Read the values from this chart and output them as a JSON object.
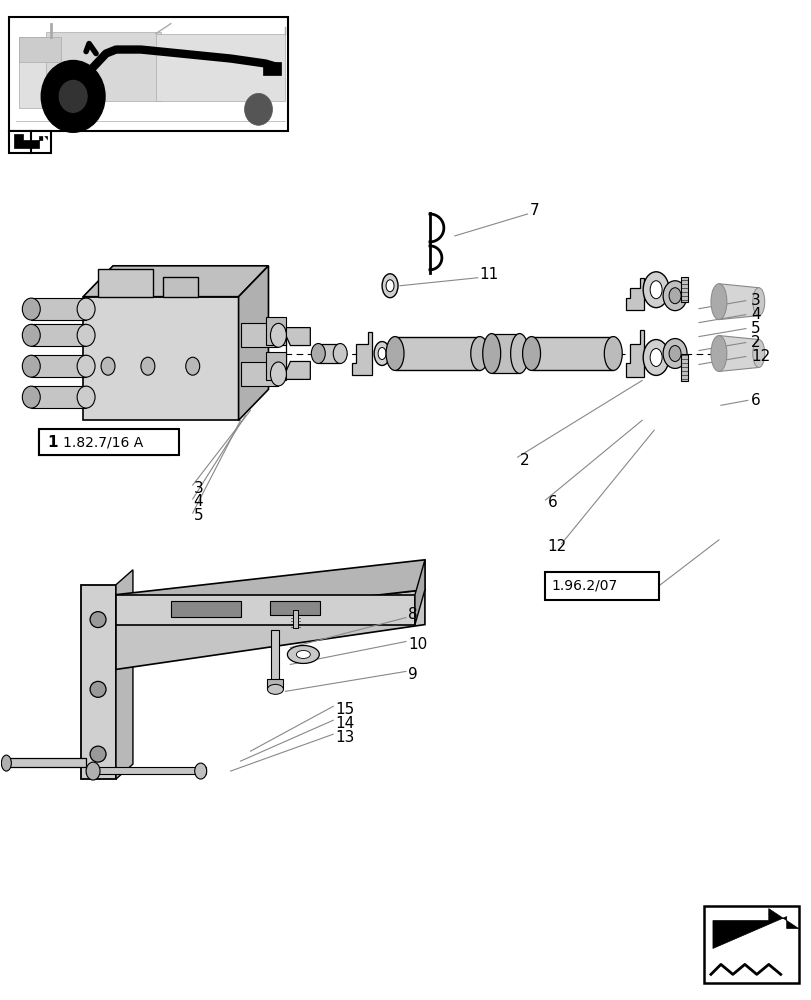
{
  "bg_color": "#ffffff",
  "fig_width": 8.12,
  "fig_height": 10.0,
  "dpi": 100
}
